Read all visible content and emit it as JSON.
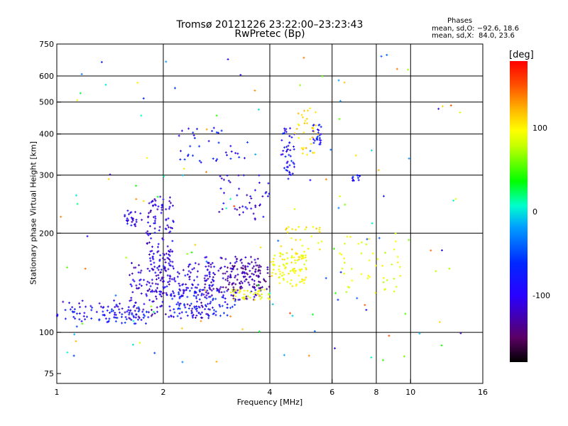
{
  "title": {
    "line1": "Tromsø 20121226 23:22:00–23:23:43",
    "line2": "RwPretec (Bp)"
  },
  "phase_box": {
    "title": "Phases",
    "line1": "mean, sd,O: −92.6, 18.6",
    "line2": "mean, sd,X:  84.0, 23.6"
  },
  "colorbar": {
    "unit": "[deg]",
    "ticks": [
      {
        "value": 100,
        "label": "100"
      },
      {
        "value": 0,
        "label": "0"
      },
      {
        "value": -100,
        "label": "-100"
      }
    ],
    "range": [
      -180,
      180
    ]
  },
  "chart_data": {
    "type": "scatter",
    "xlabel": "Frequency [MHz]",
    "ylabel": "Stationary phase Virtual Height [km]",
    "xscale": "log",
    "yscale": "log",
    "xlim": [
      1,
      16
    ],
    "ylim": [
      70,
      750
    ],
    "xticks": [
      {
        "value": 1,
        "label": "1"
      },
      {
        "value": 2,
        "label": "2"
      },
      {
        "value": 4,
        "label": "4"
      },
      {
        "value": 6,
        "label": "6"
      },
      {
        "value": 8,
        "label": "8"
      },
      {
        "value": 10,
        "label": "10"
      },
      {
        "value": 16,
        "label": "16"
      }
    ],
    "xgrid": [
      2,
      4,
      6,
      8,
      10
    ],
    "yticks": [
      {
        "value": 75,
        "label": "75"
      },
      {
        "value": 100,
        "label": "100"
      },
      {
        "value": 200,
        "label": "200"
      },
      {
        "value": 300,
        "label": "300"
      },
      {
        "value": 400,
        "label": "400"
      },
      {
        "value": 500,
        "label": "500"
      },
      {
        "value": 600,
        "label": "600"
      },
      {
        "value": 750,
        "label": "750"
      }
    ],
    "ygrid": [
      100,
      200,
      300,
      400,
      500,
      600
    ],
    "grid": true,
    "colorbar_label": "[deg]",
    "clusters": [
      {
        "fmin": 1.0,
        "fmax": 1.6,
        "hmin": 108,
        "hmax": 125,
        "phase": -110,
        "n": 60
      },
      {
        "fmin": 1.3,
        "fmax": 1.8,
        "hmin": 106,
        "hmax": 118,
        "phase": -95,
        "n": 40
      },
      {
        "fmin": 1.6,
        "fmax": 2.8,
        "hmin": 110,
        "hmax": 165,
        "phase": -118,
        "n": 230
      },
      {
        "fmin": 1.8,
        "fmax": 2.15,
        "hmin": 130,
        "hmax": 260,
        "phase": -115,
        "n": 140
      },
      {
        "fmin": 2.1,
        "fmax": 3.2,
        "hmin": 112,
        "hmax": 135,
        "phase": -95,
        "n": 90
      },
      {
        "fmin": 2.6,
        "fmax": 3.8,
        "hmin": 125,
        "hmax": 170,
        "phase": -125,
        "n": 130
      },
      {
        "fmin": 3.0,
        "fmax": 4.0,
        "hmin": 135,
        "hmax": 160,
        "phase": -140,
        "n": 70
      },
      {
        "fmin": 3.1,
        "fmax": 4.0,
        "hmin": 125,
        "hmax": 135,
        "phase": 95,
        "n": 40
      },
      {
        "fmin": 4.0,
        "fmax": 5.1,
        "hmin": 138,
        "hmax": 175,
        "phase": 100,
        "n": 90
      },
      {
        "fmin": 4.3,
        "fmax": 5.6,
        "hmin": 175,
        "hmax": 210,
        "phase": 110,
        "n": 25
      },
      {
        "fmin": 4.3,
        "fmax": 4.7,
        "hmin": 300,
        "hmax": 420,
        "phase": -105,
        "n": 45
      },
      {
        "fmin": 4.7,
        "fmax": 5.5,
        "hmin": 340,
        "hmax": 480,
        "phase": 115,
        "n": 35
      },
      {
        "fmin": 5.3,
        "fmax": 5.6,
        "hmin": 370,
        "hmax": 430,
        "phase": -100,
        "n": 25
      },
      {
        "fmin": 2.2,
        "fmax": 3.4,
        "hmin": 320,
        "hmax": 420,
        "phase": -100,
        "n": 35
      },
      {
        "fmin": 1.55,
        "fmax": 1.75,
        "hmin": 210,
        "hmax": 235,
        "phase": -115,
        "n": 25
      },
      {
        "fmin": 6.3,
        "fmax": 9.5,
        "hmin": 130,
        "hmax": 200,
        "phase": 90,
        "n": 45
      },
      {
        "fmin": 6.8,
        "fmax": 7.2,
        "hmin": 285,
        "hmax": 305,
        "phase": -105,
        "n": 12
      },
      {
        "fmin": 2.8,
        "fmax": 4.0,
        "hmin": 220,
        "hmax": 300,
        "phase": -115,
        "n": 45
      },
      {
        "fmin": 1.0,
        "fmax": 14.0,
        "hmin": 80,
        "hmax": 700,
        "phase": 20,
        "spread": 150,
        "n": 140
      }
    ]
  }
}
